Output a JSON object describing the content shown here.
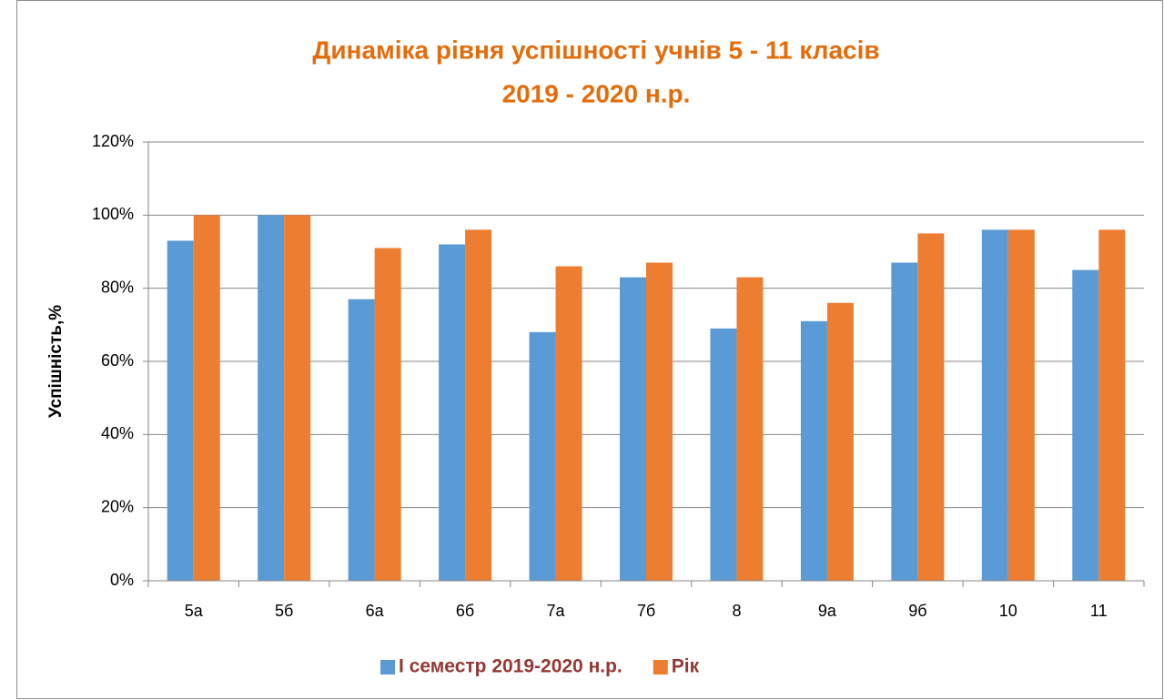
{
  "chart_data": {
    "type": "bar",
    "title": [
      "Динаміка рівня успішності  учнів 5 - 11 класів",
      "2019 - 2020 н.р."
    ],
    "y_label": "Успішність,%",
    "categories": [
      "5а",
      "5б",
      "6а",
      "6б",
      "7а",
      "7б",
      "8",
      "9а",
      "9б",
      "10",
      "11"
    ],
    "series": [
      {
        "name": "І семестр 2019-2020 н.р.",
        "color": "#5b9bd5",
        "values": [
          93,
          100,
          77,
          92,
          68,
          83,
          69,
          71,
          87,
          96,
          85
        ]
      },
      {
        "name": "Рік",
        "color": "#ed7d31",
        "values": [
          100,
          100,
          91,
          96,
          86,
          87,
          83,
          76,
          95,
          96,
          96
        ]
      }
    ],
    "ylim": [
      0,
      120
    ],
    "yticks": [
      {
        "value": 0,
        "label": "0%"
      },
      {
        "value": 20,
        "label": "20%"
      },
      {
        "value": 40,
        "label": "40%"
      },
      {
        "value": 60,
        "label": "60%"
      },
      {
        "value": 80,
        "label": "80%"
      },
      {
        "value": 100,
        "label": "100%"
      },
      {
        "value": 120,
        "label": "120%"
      }
    ],
    "grid": true,
    "legend": "bottom"
  }
}
